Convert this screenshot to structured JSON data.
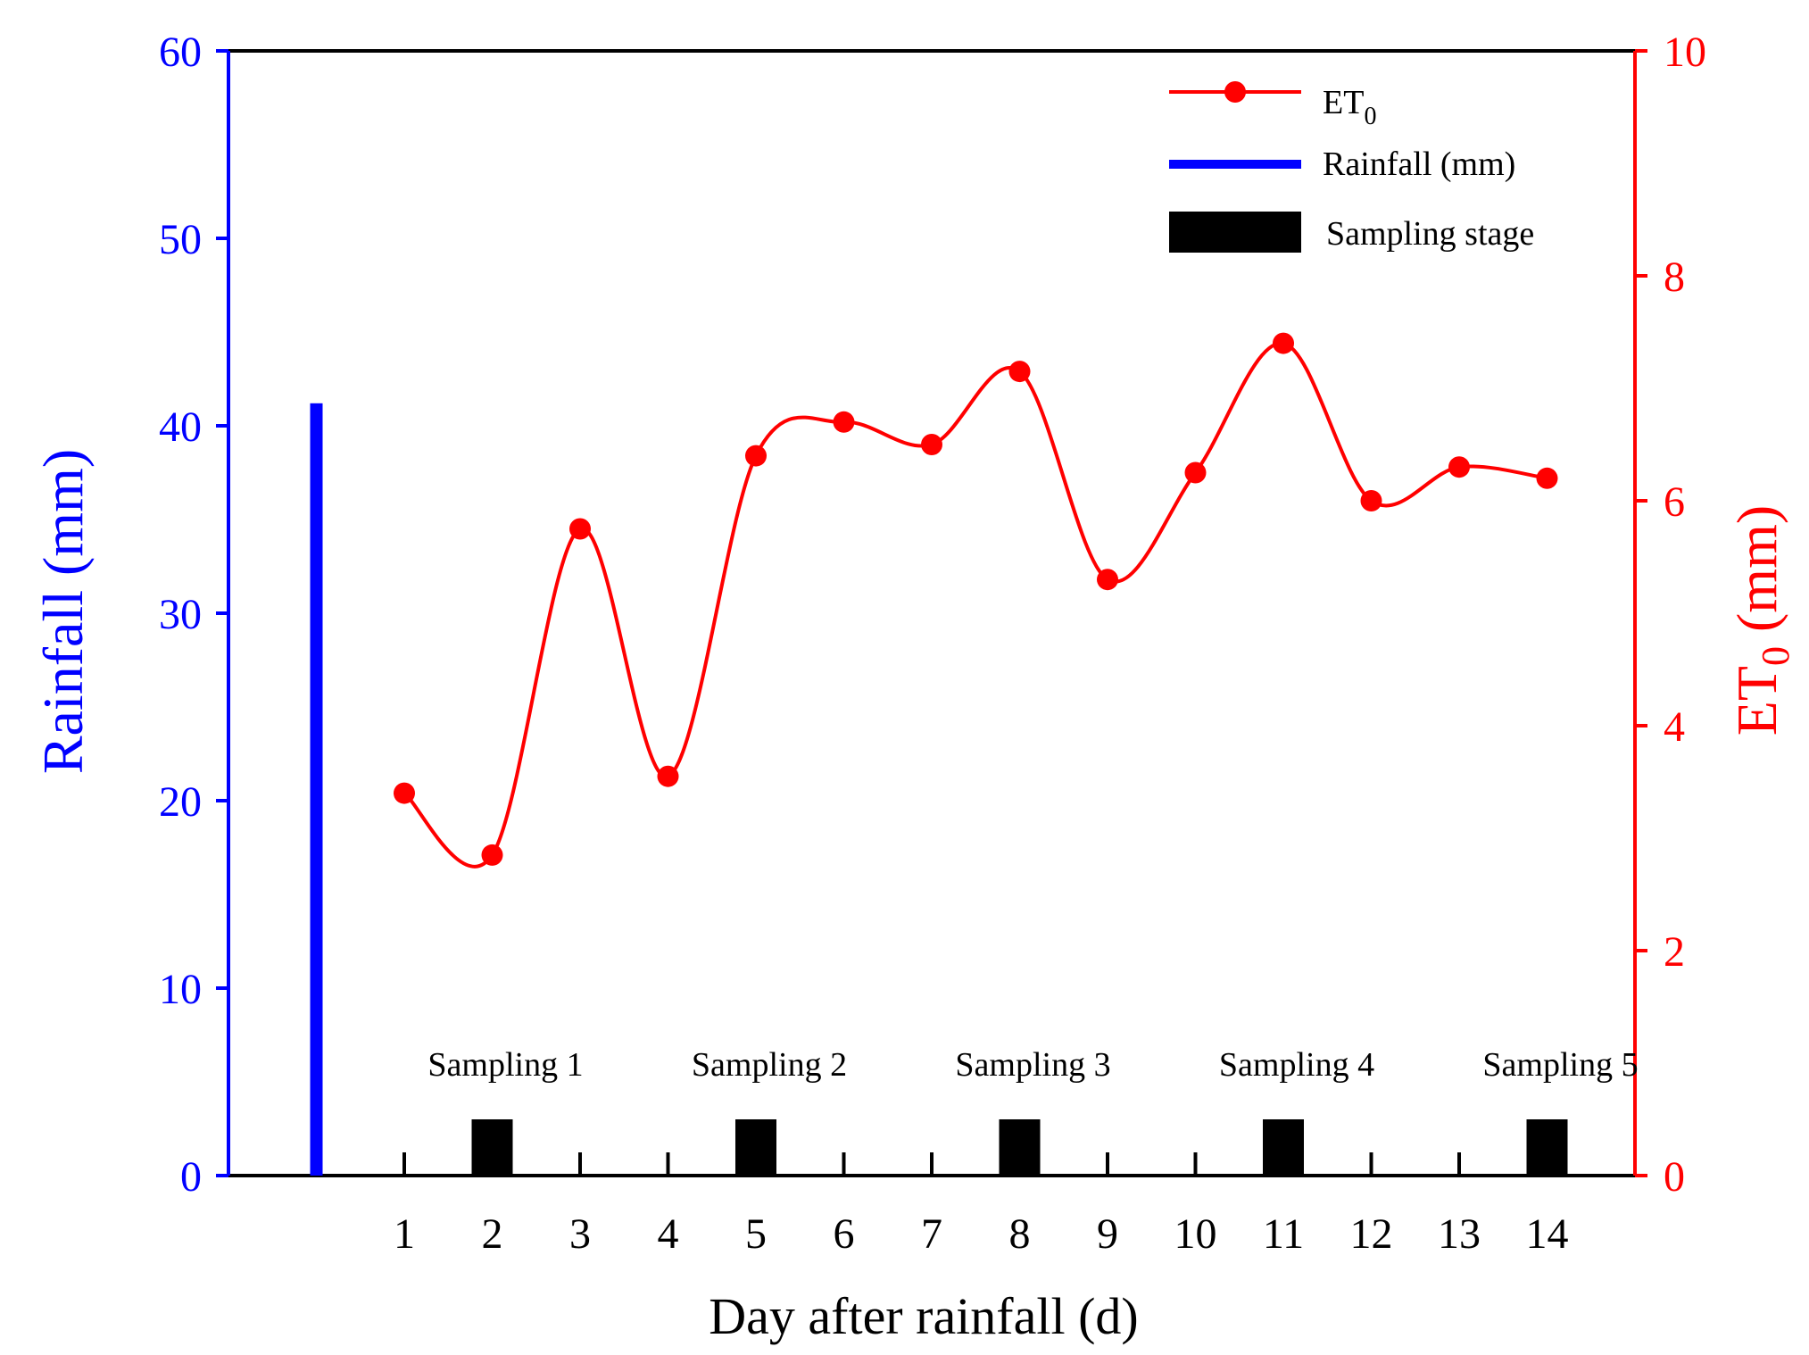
{
  "chart_data": {
    "type": "line",
    "xlabel": "Day after rainfall (d)",
    "ylabel_left": "Rainfall (mm)",
    "ylabel_right_main": "ET",
    "ylabel_right_sub": "0",
    "ylabel_right_unit": " (mm)",
    "x_ticks": [
      1,
      2,
      3,
      4,
      5,
      6,
      7,
      8,
      9,
      10,
      11,
      12,
      13,
      14
    ],
    "x_range": [
      -1,
      15
    ],
    "y_left_range": [
      0,
      60
    ],
    "y_left_ticks": [
      0,
      10,
      20,
      30,
      40,
      50,
      60
    ],
    "y_right_range": [
      0,
      10
    ],
    "y_right_ticks": [
      0,
      2,
      4,
      6,
      8,
      10
    ],
    "rainfall": {
      "name": "Rainfall (mm)",
      "x": 0,
      "value": 41.2,
      "color": "#0000ff"
    },
    "series": [
      {
        "name_main": "ET",
        "name_sub": "0",
        "axis": "right",
        "color": "#ff0000",
        "x": [
          1,
          2,
          3,
          4,
          5,
          6,
          7,
          8,
          9,
          10,
          11,
          12,
          13,
          14
        ],
        "values": [
          3.4,
          2.85,
          5.75,
          3.55,
          6.4,
          6.7,
          6.5,
          7.15,
          5.3,
          6.25,
          7.4,
          6.0,
          6.3,
          6.2
        ]
      }
    ],
    "sampling": {
      "name": "Sampling stage",
      "color": "#000000",
      "height_mm": 3,
      "stages": [
        {
          "x": 2,
          "label": "Sampling 1"
        },
        {
          "x": 5,
          "label": "Sampling 2"
        },
        {
          "x": 8,
          "label": "Sampling 3"
        },
        {
          "x": 11,
          "label": "Sampling 4"
        },
        {
          "x": 14,
          "label": "Sampling 5"
        }
      ]
    },
    "legend_position": "top-right",
    "grid": false
  }
}
